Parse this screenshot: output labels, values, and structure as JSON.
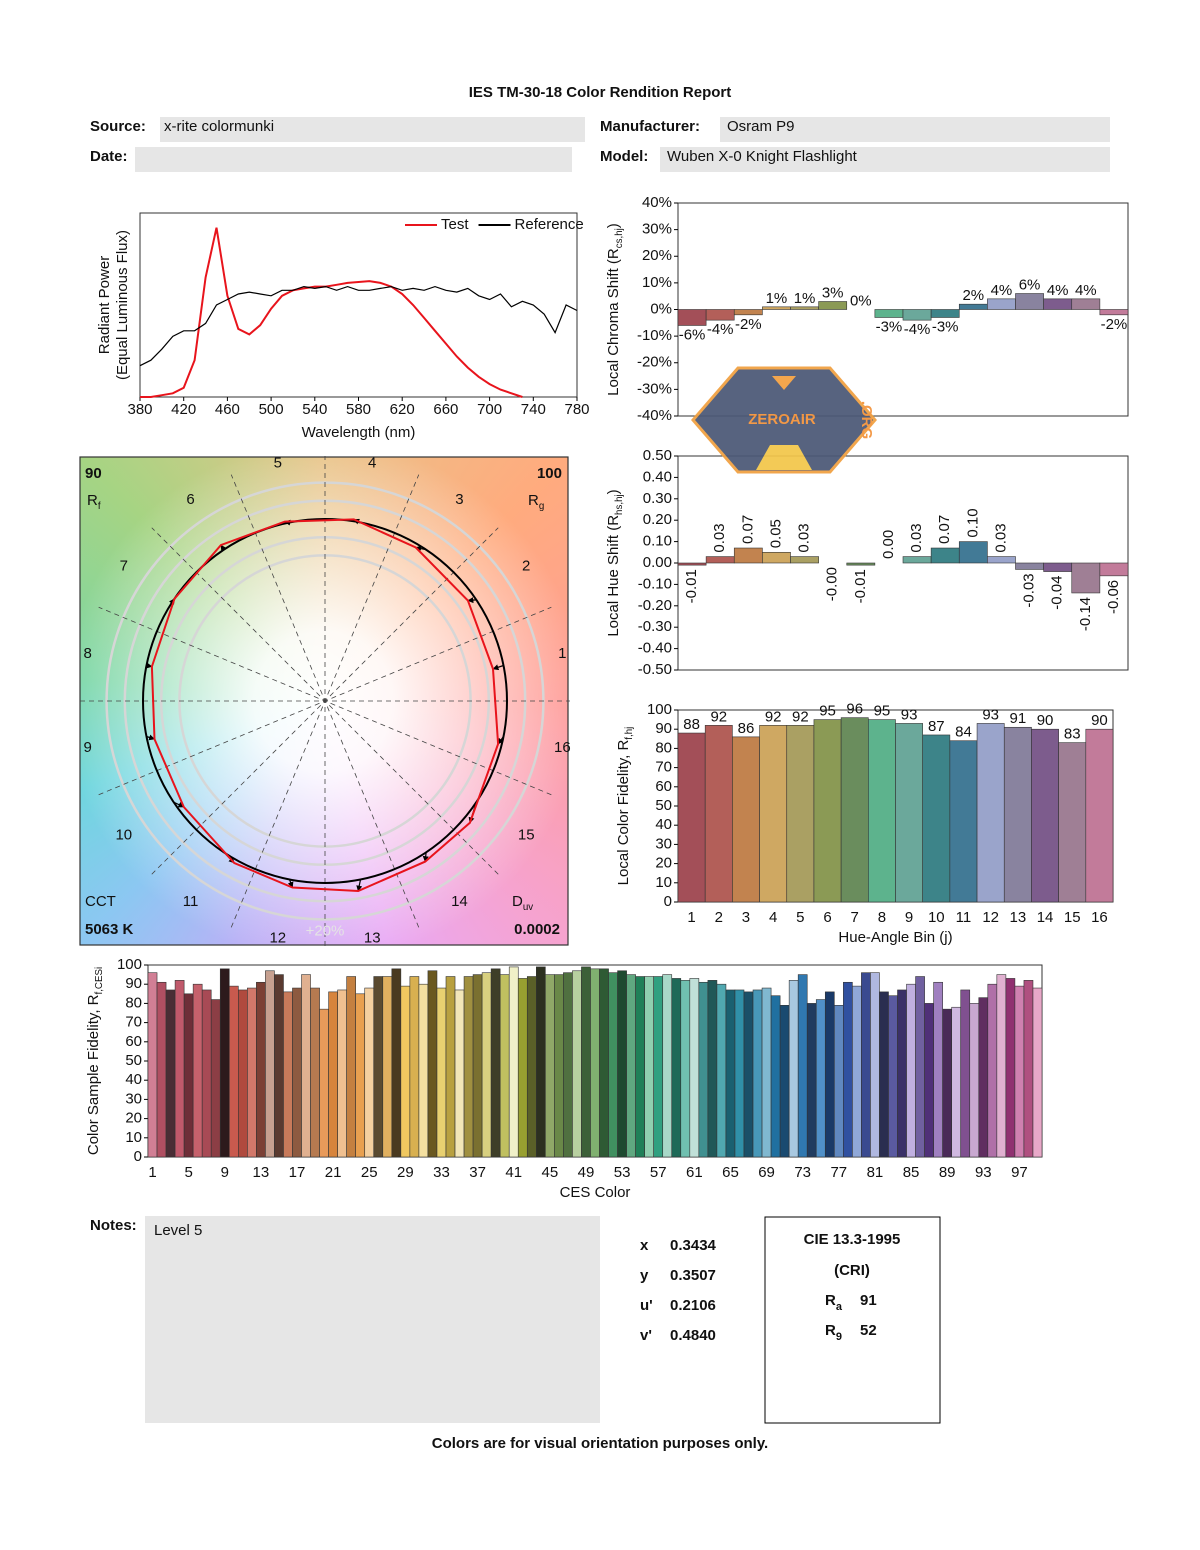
{
  "header": {
    "title": "IES TM-30-18 Color Rendition Report",
    "source_label": "Source:",
    "source": "x-rite colormunki",
    "manufacturer_label": "Manufacturer:",
    "manufacturer": "Osram P9",
    "date_label": "Date:",
    "model_label": "Model:",
    "model": "Wuben X-0 Knight Flashlight"
  },
  "chart_data": [
    {
      "type": "line",
      "ylabel": "Radiant Power",
      "ylabel2": "(Equal Luminous Flux)",
      "xlabel": "Wavelength (nm)",
      "x": [
        380,
        390,
        400,
        410,
        420,
        430,
        440,
        450,
        460,
        470,
        480,
        490,
        500,
        510,
        520,
        530,
        540,
        550,
        560,
        570,
        580,
        590,
        600,
        610,
        620,
        630,
        640,
        650,
        660,
        670,
        680,
        690,
        700,
        710,
        720,
        730,
        740,
        750,
        760,
        770,
        780
      ],
      "series": [
        {
          "name": "Test",
          "color": "#e8141c",
          "values": [
            0,
            0,
            0.01,
            0.02,
            0.05,
            0.2,
            0.65,
            0.92,
            0.55,
            0.37,
            0.34,
            0.39,
            0.48,
            0.55,
            0.58,
            0.59,
            0.6,
            0.6,
            0.61,
            0.62,
            0.625,
            0.63,
            0.62,
            0.6,
            0.56,
            0.5,
            0.43,
            0.36,
            0.29,
            0.22,
            0.16,
            0.11,
            0.07,
            0.04,
            0.02,
            0,
            null,
            null,
            null,
            null,
            null
          ]
        },
        {
          "name": "Reference",
          "color": "#000000",
          "values": [
            0.17,
            0.2,
            0.26,
            0.33,
            0.36,
            0.36,
            0.4,
            0.5,
            0.53,
            0.56,
            0.57,
            0.56,
            0.55,
            0.58,
            0.58,
            0.6,
            0.59,
            0.6,
            0.58,
            0.6,
            0.58,
            0.58,
            0.59,
            0.6,
            0.58,
            0.59,
            0.58,
            0.6,
            0.58,
            0.57,
            0.59,
            0.55,
            0.53,
            0.56,
            0.49,
            0.52,
            0.5,
            0.45,
            0.35,
            0.5,
            0.47
          ]
        }
      ],
      "xlim": [
        380,
        780
      ],
      "xticks": [
        380,
        420,
        460,
        500,
        540,
        580,
        620,
        660,
        700,
        740,
        780
      ],
      "ylim": [
        0,
        1
      ],
      "legend": "upper right"
    },
    {
      "type": "bar",
      "ylabel": "Local Chroma Shift (R",
      "ylabel_sub": "cs,hj",
      "ylabel_end": ")",
      "values": [
        -6,
        -4,
        -2,
        1,
        1,
        3,
        0,
        -3,
        -4,
        -3,
        2,
        4,
        6,
        4,
        4,
        -2
      ],
      "value_labels": [
        "-6%",
        "-4%",
        "-2%",
        "1%",
        "1%",
        "3%",
        "0%",
        "-3%",
        "-4%",
        "-3%",
        "2%",
        "4%",
        "6%",
        "4%",
        "4%",
        "-2%"
      ],
      "colors": [
        "#a34f58",
        "#b35f59",
        "#c2834f",
        "#cfa862",
        "#aaa063",
        "#8b9a55",
        "#6a8d5d",
        "#5db38d",
        "#6ba89b",
        "#3d8489",
        "#427a96",
        "#9aa4cb",
        "#89839f",
        "#7d5c8d",
        "#9f7f95",
        "#c27b9a"
      ],
      "ylim": [
        -40,
        40
      ],
      "yticks": [
        {
          "value": -40,
          "label": "-40%"
        },
        {
          "value": -30,
          "label": "-30%"
        },
        {
          "value": -20,
          "label": "-20%"
        },
        {
          "value": -10,
          "label": "-10%"
        },
        {
          "value": 0,
          "label": "0%"
        },
        {
          "value": 10,
          "label": "10%"
        },
        {
          "value": 20,
          "label": "20%"
        },
        {
          "value": 30,
          "label": "30%"
        },
        {
          "value": 40,
          "label": "40%"
        }
      ]
    },
    {
      "type": "bar",
      "ylabel": "Local Hue Shift (R",
      "ylabel_sub": "hs,hj",
      "ylabel_end": ")",
      "values": [
        -0.01,
        0.03,
        0.07,
        0.05,
        0.03,
        0,
        -0.01,
        0,
        0.03,
        0.07,
        0.1,
        0.03,
        -0.03,
        -0.04,
        -0.14,
        -0.06
      ],
      "value_labels": [
        "-0.01",
        "0.03",
        "0.07",
        "0.05",
        "0.03",
        "-0.00",
        "-0.01",
        "0.00",
        "0.03",
        "0.07",
        "0.10",
        "0.03",
        "-0.03",
        "-0.04",
        "-0.14",
        "-0.06"
      ],
      "colors": [
        "#a34f58",
        "#b35f59",
        "#c2834f",
        "#cfa862",
        "#aaa063",
        "#8b9a55",
        "#6a8d5d",
        "#5db38d",
        "#6ba89b",
        "#3d8489",
        "#427a96",
        "#9aa4cb",
        "#89839f",
        "#7d5c8d",
        "#9f7f95",
        "#c27b9a"
      ],
      "ylim": [
        -0.5,
        0.5
      ],
      "yticks": [
        {
          "value": -0.5,
          "label": "-0.50"
        },
        {
          "value": -0.4,
          "label": "-0.40"
        },
        {
          "value": -0.3,
          "label": "-0.30"
        },
        {
          "value": -0.2,
          "label": "-0.20"
        },
        {
          "value": -0.1,
          "label": "-0.10"
        },
        {
          "value": 0,
          "label": "0.00"
        },
        {
          "value": 0.1,
          "label": "0.10"
        },
        {
          "value": 0.2,
          "label": "0.20"
        },
        {
          "value": 0.3,
          "label": "0.30"
        },
        {
          "value": 0.4,
          "label": "0.40"
        },
        {
          "value": 0.5,
          "label": "0.50"
        }
      ]
    },
    {
      "type": "bar",
      "ylabel": "Local Color Fidelity, R",
      "ylabel_sub": "f,hj",
      "xlabel": "Hue-Angle Bin (j)",
      "categories": [
        "1",
        "2",
        "3",
        "4",
        "5",
        "6",
        "7",
        "8",
        "9",
        "10",
        "11",
        "12",
        "13",
        "14",
        "15",
        "16"
      ],
      "values": [
        88,
        92,
        86,
        92,
        92,
        95,
        96,
        95,
        93,
        87,
        84,
        93,
        91,
        90,
        83,
        90
      ],
      "data_labels": true,
      "colors": [
        "#a34f58",
        "#b35f59",
        "#c2834f",
        "#cfa862",
        "#aaa063",
        "#8b9a55",
        "#6a8d5d",
        "#5db38d",
        "#6ba89b",
        "#3d8489",
        "#427a96",
        "#9aa4cb",
        "#89839f",
        "#7d5c8d",
        "#9f7f95",
        "#c27b9a"
      ],
      "ylim": [
        0,
        100
      ],
      "yticks": [
        0,
        10,
        20,
        30,
        40,
        50,
        60,
        70,
        80,
        90,
        100
      ]
    },
    {
      "type": "bar",
      "ylabel": "Color Sample Fidelity, R",
      "ylabel_sub": "f,CESi",
      "xlabel": "CES Color",
      "categories": [
        "1",
        null,
        null,
        null,
        "5",
        null,
        null,
        null,
        "9",
        null,
        null,
        null,
        "13",
        null,
        null,
        null,
        "17",
        null,
        null,
        null,
        "21",
        null,
        null,
        null,
        "25",
        null,
        null,
        null,
        "29",
        null,
        null,
        null,
        "33",
        null,
        null,
        null,
        "37",
        null,
        null,
        null,
        "41",
        null,
        null,
        null,
        "45",
        null,
        null,
        null,
        "49",
        null,
        null,
        null,
        "53",
        null,
        null,
        null,
        "57",
        null,
        null,
        null,
        "61",
        null,
        null,
        null,
        "65",
        null,
        null,
        null,
        "69",
        null,
        null,
        null,
        "73",
        null,
        null,
        null,
        "77",
        null,
        null,
        null,
        "81",
        null,
        null,
        null,
        "85",
        null,
        null,
        null,
        "89",
        null,
        null,
        null,
        "93",
        null,
        null,
        null,
        "97",
        null,
        null
      ],
      "values": [
        96,
        91,
        87,
        92,
        85,
        90,
        87,
        82,
        98,
        89,
        87,
        88,
        91,
        97,
        95,
        86,
        88,
        95,
        88,
        77,
        86,
        87,
        94,
        85,
        88,
        94,
        94,
        98,
        89,
        94,
        90,
        97,
        88,
        94,
        87,
        94,
        95,
        96,
        98,
        95,
        99,
        93,
        94,
        99,
        95,
        95,
        96,
        97,
        99,
        98,
        98,
        96,
        97,
        95,
        94,
        94,
        94,
        95,
        93,
        92,
        93,
        91,
        92,
        90,
        87,
        87,
        86,
        87,
        88,
        84,
        79,
        92,
        95,
        80,
        82,
        86,
        79,
        91,
        89,
        96,
        96,
        86,
        84,
        87,
        90,
        94,
        80,
        91,
        77,
        78,
        87,
        80,
        83,
        90,
        95,
        93,
        89,
        92,
        88
      ],
      "colors": [
        "#d17f95",
        "#b04f62",
        "#4a2d35",
        "#c0596b",
        "#6e2e38",
        "#c6616c",
        "#a84a55",
        "#8c3e45",
        "#2d1a1c",
        "#c95a4e",
        "#b04a3e",
        "#d2786a",
        "#7b4035",
        "#c6a090",
        "#5a3a30",
        "#c87a5a",
        "#8d5a40",
        "#e0b090",
        "#b67a50",
        "#e89a5a",
        "#d7843c",
        "#f0c090",
        "#c48040",
        "#e8a050",
        "#f4d0a0",
        "#5a4a30",
        "#e0b060",
        "#4a3a20",
        "#f0c860",
        "#d8b050",
        "#f4e0a0",
        "#6a5820",
        "#e8d070",
        "#b8a040",
        "#f2e6b8",
        "#a09040",
        "#7a7030",
        "#d8d080",
        "#3e3e28",
        "#c0c060",
        "#f0f0c8",
        "#98a030",
        "#5a6028",
        "#2c3020",
        "#90a868",
        "#6a8848",
        "#507040",
        "#b8d0a0",
        "#3c6038",
        "#80b070",
        "#2e5a34",
        "#409060",
        "#1e4a30",
        "#60a880",
        "#208058",
        "#90d0b0",
        "#30a080",
        "#a8d8c8",
        "#1e6a58",
        "#70c0b0",
        "#c0e0d8",
        "#409090",
        "#205858",
        "#50a8b0",
        "#1a6070",
        "#3090a8",
        "#1a5068",
        "#4898b8",
        "#80b8d0",
        "#2070a0",
        "#1a4a70",
        "#a8c8e0",
        "#3078b0",
        "#203c60",
        "#5090c8",
        "#1a3a68",
        "#6088c0",
        "#3050a0",
        "#90a8d8",
        "#3a4a90",
        "#b0b8e0",
        "#2a2e50",
        "#5a5aa0",
        "#3a3068",
        "#c0b0e0",
        "#7060a0",
        "#503078",
        "#a080c0",
        "#4a2a58",
        "#d0b8e0",
        "#805090",
        "#c8a8d0",
        "#602e60",
        "#b070a8",
        "#e0b0d0",
        "#903070",
        "#d080b0",
        "#b05080",
        "#e8a8c8"
      ],
      "ylim": [
        0,
        100
      ],
      "yticks": [
        0,
        10,
        20,
        30,
        40,
        50,
        60,
        70,
        80,
        90,
        100
      ]
    },
    {
      "type": "vector",
      "rf": 90,
      "rf_label": "R",
      "rf_sub": "f",
      "rg": 100,
      "rg_label": "R",
      "rg_sub": "g",
      "cct_label": "CCT",
      "cct": "5063 K",
      "duv_label": "D",
      "duv_sub": "uv",
      "duv": "0.0002",
      "bins": [
        "1",
        "2",
        "3",
        "4",
        "5",
        "6",
        "7",
        "8",
        "9",
        "10",
        "11",
        "12",
        "13",
        "14",
        "15",
        "16"
      ],
      "ring_label": "+20%",
      "test_color": "#e8141c",
      "reference_color": "#000000"
    }
  ],
  "watermark": {
    "text": "ZEROAIR",
    "suffix": ".ORG"
  },
  "notes": {
    "label": "Notes:",
    "text": "Level 5"
  },
  "colorimetry": [
    {
      "label": "x",
      "value": "0.3434"
    },
    {
      "label": "y",
      "value": "0.3507"
    },
    {
      "label": "u'",
      "value": "0.2106"
    },
    {
      "label": "v'",
      "value": "0.4840"
    }
  ],
  "cri": {
    "title": "CIE 13.3-1995",
    "subtitle": "(CRI)",
    "ra_label": "R",
    "ra_sub": "a",
    "ra": "91",
    "r9_label": "R",
    "r9_sub": "9",
    "r9": "52"
  },
  "footer": "Colors are for visual orientation purposes only."
}
